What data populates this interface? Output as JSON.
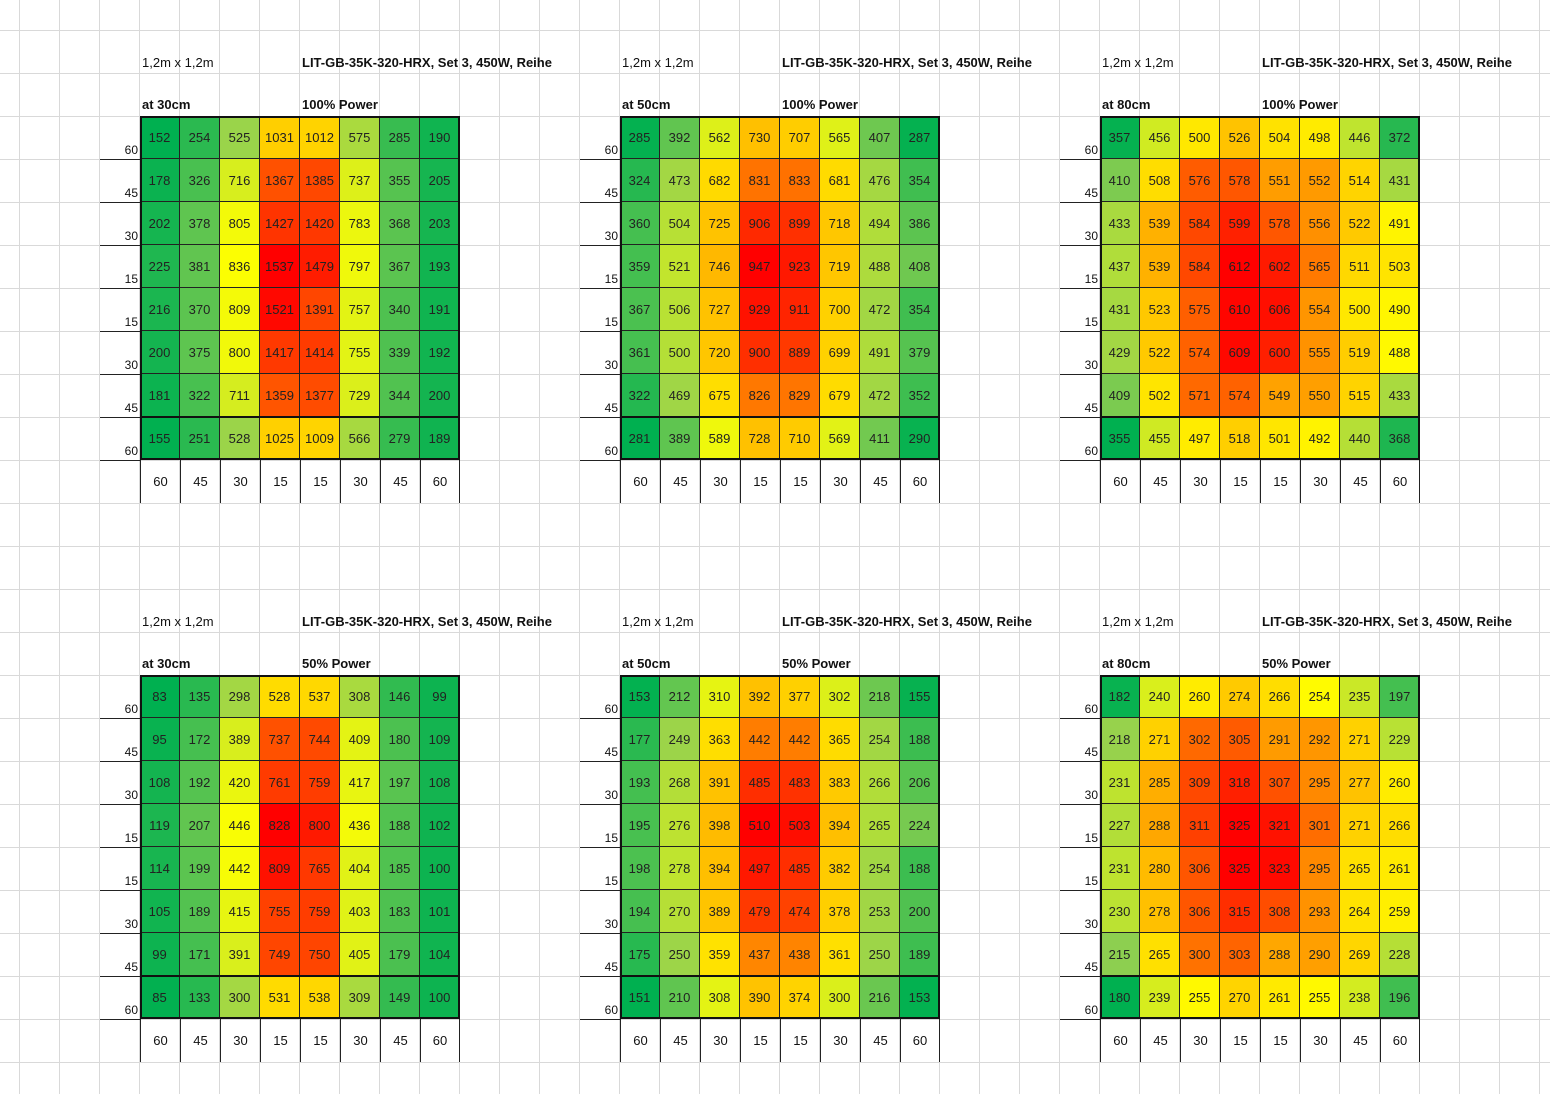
{
  "sheet": {
    "grid_color": "#d9d9d9",
    "border_color": "#111111"
  },
  "color_scale": {
    "low": "#00b050",
    "mid_low": "#92d050",
    "mid": "#ffff00",
    "mid_high": "#ffa500",
    "high": "#ff0000"
  },
  "chart_data": [
    {
      "type": "heatmap",
      "size_label": "1,2m x 1,2m",
      "title": "LIT-GB-35K-320-HRX, Set 3, 450W, Reihe",
      "height_label": "at 30cm",
      "power_label": "100% Power",
      "x_labels": [
        "60",
        "45",
        "30",
        "15",
        "15",
        "30",
        "45",
        "60"
      ],
      "y_labels": [
        "60",
        "45",
        "30",
        "15",
        "15",
        "30",
        "45",
        "60"
      ],
      "values": [
        [
          152,
          254,
          525,
          1031,
          1012,
          575,
          285,
          190
        ],
        [
          178,
          326,
          716,
          1367,
          1385,
          737,
          355,
          205
        ],
        [
          202,
          378,
          805,
          1427,
          1420,
          783,
          368,
          203
        ],
        [
          225,
          381,
          836,
          1537,
          1479,
          797,
          367,
          193
        ],
        [
          216,
          370,
          809,
          1521,
          1391,
          757,
          340,
          191
        ],
        [
          200,
          375,
          800,
          1417,
          1414,
          755,
          339,
          192
        ],
        [
          181,
          322,
          711,
          1359,
          1377,
          729,
          344,
          200
        ],
        [
          155,
          251,
          528,
          1025,
          1009,
          566,
          279,
          189
        ]
      ]
    },
    {
      "type": "heatmap",
      "size_label": "1,2m x 1,2m",
      "title": "LIT-GB-35K-320-HRX, Set 3, 450W, Reihe",
      "height_label": "at 50cm",
      "power_label": "100% Power",
      "x_labels": [
        "60",
        "45",
        "30",
        "15",
        "15",
        "30",
        "45",
        "60"
      ],
      "y_labels": [
        "60",
        "45",
        "30",
        "15",
        "15",
        "30",
        "45",
        "60"
      ],
      "values": [
        [
          285,
          392,
          562,
          730,
          707,
          565,
          407,
          287
        ],
        [
          324,
          473,
          682,
          831,
          833,
          681,
          476,
          354
        ],
        [
          360,
          504,
          725,
          906,
          899,
          718,
          494,
          386
        ],
        [
          359,
          521,
          746,
          947,
          923,
          719,
          488,
          408
        ],
        [
          367,
          506,
          727,
          929,
          911,
          700,
          472,
          354
        ],
        [
          361,
          500,
          720,
          900,
          889,
          699,
          491,
          379
        ],
        [
          322,
          469,
          675,
          826,
          829,
          679,
          472,
          352
        ],
        [
          281,
          389,
          589,
          728,
          710,
          569,
          411,
          290
        ]
      ]
    },
    {
      "type": "heatmap",
      "size_label": "1,2m x 1,2m",
      "title": "LIT-GB-35K-320-HRX, Set 3, 450W, Reihe",
      "height_label": "at 80cm",
      "power_label": "100% Power",
      "x_labels": [
        "60",
        "45",
        "30",
        "15",
        "15",
        "30",
        "45",
        "60"
      ],
      "y_labels": [
        "60",
        "45",
        "30",
        "15",
        "15",
        "30",
        "45",
        "60"
      ],
      "values": [
        [
          357,
          456,
          500,
          526,
          504,
          498,
          446,
          372
        ],
        [
          410,
          508,
          576,
          578,
          551,
          552,
          514,
          431
        ],
        [
          433,
          539,
          584,
          599,
          578,
          556,
          522,
          491
        ],
        [
          437,
          539,
          584,
          612,
          602,
          565,
          511,
          503
        ],
        [
          431,
          523,
          575,
          610,
          606,
          554,
          500,
          490
        ],
        [
          429,
          522,
          574,
          609,
          600,
          555,
          519,
          488
        ],
        [
          409,
          502,
          571,
          574,
          549,
          550,
          515,
          433
        ],
        [
          355,
          455,
          497,
          518,
          501,
          492,
          440,
          368
        ]
      ]
    },
    {
      "type": "heatmap",
      "size_label": "1,2m x 1,2m",
      "title": "LIT-GB-35K-320-HRX, Set 3, 450W, Reihe",
      "height_label": "at 30cm",
      "power_label": "50% Power",
      "x_labels": [
        "60",
        "45",
        "30",
        "15",
        "15",
        "30",
        "45",
        "60"
      ],
      "y_labels": [
        "60",
        "45",
        "30",
        "15",
        "15",
        "30",
        "45",
        "60"
      ],
      "values": [
        [
          83,
          135,
          298,
          528,
          537,
          308,
          146,
          99
        ],
        [
          95,
          172,
          389,
          737,
          744,
          409,
          180,
          109
        ],
        [
          108,
          192,
          420,
          761,
          759,
          417,
          197,
          108
        ],
        [
          119,
          207,
          446,
          828,
          800,
          436,
          188,
          102
        ],
        [
          114,
          199,
          442,
          809,
          765,
          404,
          185,
          100
        ],
        [
          105,
          189,
          415,
          755,
          759,
          403,
          183,
          101
        ],
        [
          99,
          171,
          391,
          749,
          750,
          405,
          179,
          104
        ],
        [
          85,
          133,
          300,
          531,
          538,
          309,
          149,
          100
        ]
      ]
    },
    {
      "type": "heatmap",
      "size_label": "1,2m x 1,2m",
      "title": "LIT-GB-35K-320-HRX, Set 3, 450W, Reihe",
      "height_label": "at 50cm",
      "power_label": "50% Power",
      "x_labels": [
        "60",
        "45",
        "30",
        "15",
        "15",
        "30",
        "45",
        "60"
      ],
      "y_labels": [
        "60",
        "45",
        "30",
        "15",
        "15",
        "30",
        "45",
        "60"
      ],
      "values": [
        [
          153,
          212,
          310,
          392,
          377,
          302,
          218,
          155
        ],
        [
          177,
          249,
          363,
          442,
          442,
          365,
          254,
          188
        ],
        [
          193,
          268,
          391,
          485,
          483,
          383,
          266,
          206
        ],
        [
          195,
          276,
          398,
          510,
          503,
          394,
          265,
          224
        ],
        [
          198,
          278,
          394,
          497,
          485,
          382,
          254,
          188
        ],
        [
          194,
          270,
          389,
          479,
          474,
          378,
          253,
          200
        ],
        [
          175,
          250,
          359,
          437,
          438,
          361,
          250,
          189
        ],
        [
          151,
          210,
          308,
          390,
          374,
          300,
          216,
          153
        ]
      ]
    },
    {
      "type": "heatmap",
      "size_label": "1,2m x 1,2m",
      "title": "LIT-GB-35K-320-HRX, Set 3, 450W, Reihe",
      "height_label": "at 80cm",
      "power_label": "50% Power",
      "x_labels": [
        "60",
        "45",
        "30",
        "15",
        "15",
        "30",
        "45",
        "60"
      ],
      "y_labels": [
        "60",
        "45",
        "30",
        "15",
        "15",
        "30",
        "45",
        "60"
      ],
      "values": [
        [
          182,
          240,
          260,
          274,
          266,
          254,
          235,
          197
        ],
        [
          218,
          271,
          302,
          305,
          291,
          292,
          271,
          229
        ],
        [
          231,
          285,
          309,
          318,
          307,
          295,
          277,
          260
        ],
        [
          227,
          288,
          311,
          325,
          321,
          301,
          271,
          266
        ],
        [
          231,
          280,
          306,
          325,
          323,
          295,
          265,
          261
        ],
        [
          230,
          278,
          306,
          315,
          308,
          293,
          264,
          259
        ],
        [
          215,
          265,
          300,
          303,
          288,
          290,
          269,
          228
        ],
        [
          180,
          239,
          255,
          270,
          261,
          255,
          238,
          196
        ]
      ]
    }
  ]
}
